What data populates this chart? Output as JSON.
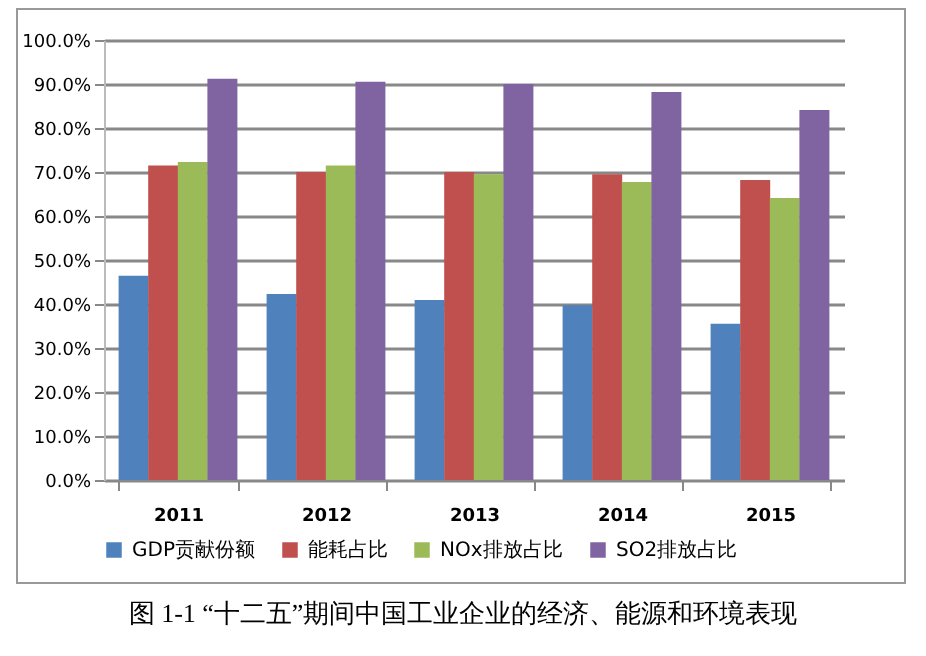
{
  "chart_data": {
    "type": "bar",
    "categories": [
      "2011",
      "2012",
      "2013",
      "2014",
      "2015"
    ],
    "series": [
      {
        "name": "GDP贡献份额",
        "color": "#4f81bd",
        "values": [
          46.4,
          42.3,
          40.9,
          39.7,
          35.5
        ]
      },
      {
        "name": "能耗占比",
        "color": "#c0504d",
        "values": [
          71.5,
          70.0,
          70.0,
          69.5,
          68.2
        ]
      },
      {
        "name": "NOx排放占比",
        "color": "#9bbb59",
        "values": [
          72.3,
          71.5,
          69.5,
          67.7,
          64.1
        ]
      },
      {
        "name": "SO2排放占比",
        "color": "#8064a2",
        "values": [
          91.2,
          90.5,
          90.0,
          88.2,
          84.1
        ]
      }
    ],
    "ylim": [
      0,
      100
    ],
    "yticks": [
      {
        "value": 0,
        "label": "0.0%"
      },
      {
        "value": 10,
        "label": "10.0%"
      },
      {
        "value": 20,
        "label": "20.0%"
      },
      {
        "value": 30,
        "label": "30.0%"
      },
      {
        "value": 40,
        "label": "40.0%"
      },
      {
        "value": 50,
        "label": "50.0%"
      },
      {
        "value": 60,
        "label": "60.0%"
      },
      {
        "value": 70,
        "label": "70.0%"
      },
      {
        "value": 80,
        "label": "80.0%"
      },
      {
        "value": 90,
        "label": "90.0%"
      },
      {
        "value": 100,
        "label": "100.0%"
      }
    ],
    "grid": "y",
    "legend": "bottom",
    "annotations": [
      "图 1-1 “十二五”期间中国工业企业的经济、能源和环境表现"
    ]
  }
}
